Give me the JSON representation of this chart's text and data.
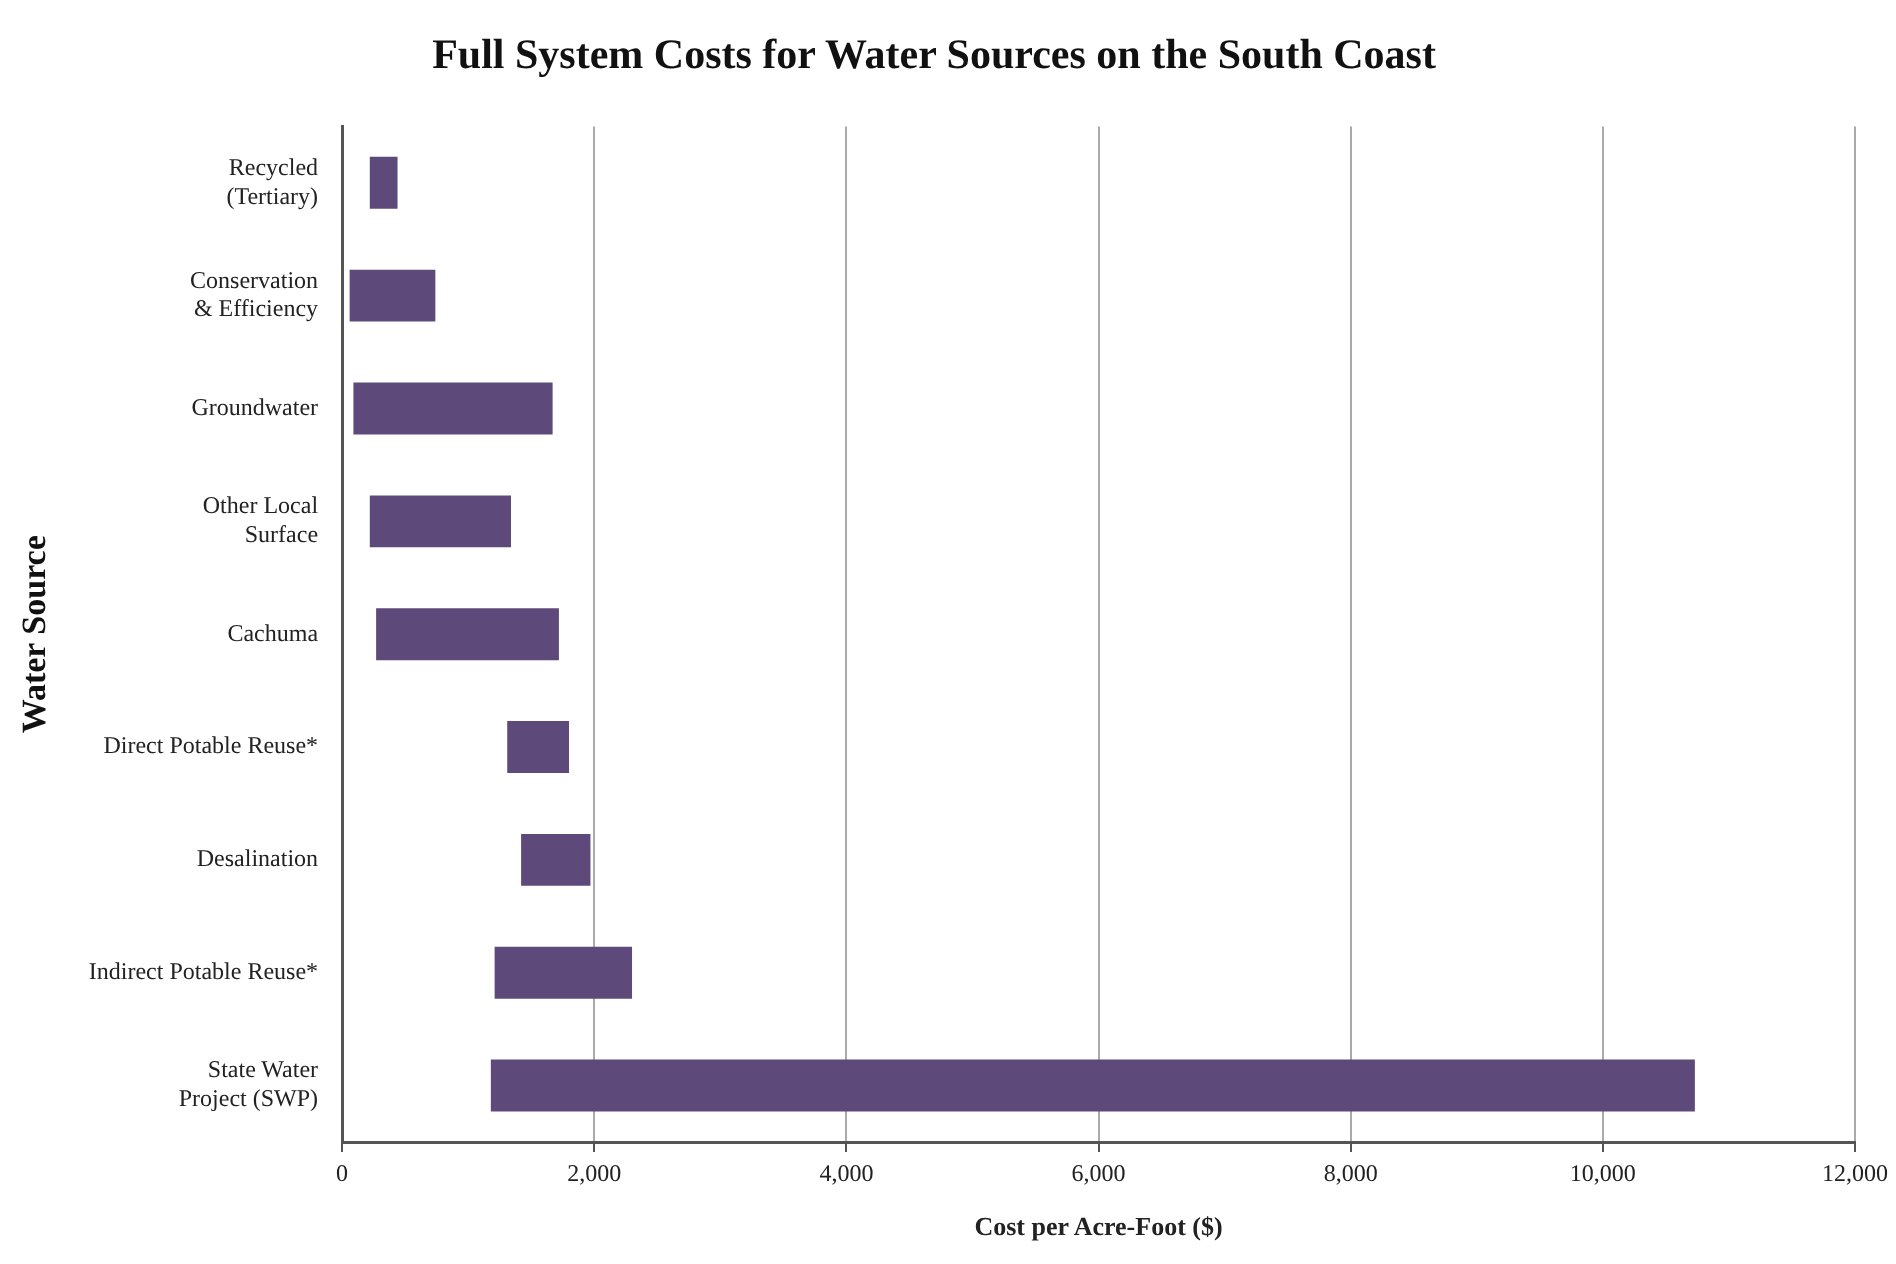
{
  "chart_data": {
    "type": "bar",
    "orientation": "horizontal",
    "title": "Full System Costs for Water Sources on the South Coast",
    "xlabel": "Cost per Acre-Foot ($)",
    "ylabel": "Water Source",
    "categories": [
      "Recycled\n(Tertiary)",
      "Conservation\n& Efficiency",
      "Groundwater",
      "Other Local\nSurface",
      "Cachuma",
      "Direct Potable Reuse*",
      "Desalination",
      "Indirect Potable Reuse*",
      "State Water\nProject (SWP)"
    ],
    "base": [
      220,
      60,
      90,
      220,
      270,
      1310,
      1420,
      1210,
      1180
    ],
    "values": [
      220,
      680,
      1580,
      1120,
      1450,
      490,
      550,
      1090,
      9550
    ],
    "color": "#5e4a7a",
    "xlim": [
      0,
      12000
    ],
    "xticks": [
      {
        "value": 0,
        "label": "0"
      },
      {
        "value": 2000,
        "label": "2,000"
      },
      {
        "value": 4000,
        "label": "4,000"
      },
      {
        "value": 6000,
        "label": "6,000"
      },
      {
        "value": 8000,
        "label": "8,000"
      },
      {
        "value": 10000,
        "label": "10,000"
      },
      {
        "value": 12000,
        "label": "12,000"
      }
    ],
    "grid": "x",
    "legend": false
  }
}
